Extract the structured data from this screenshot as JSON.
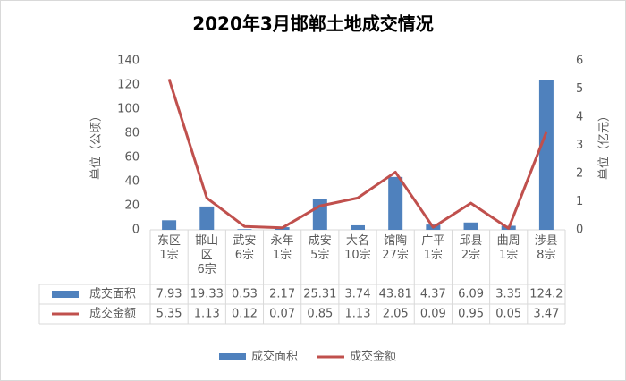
{
  "chart_data": {
    "type": "bar-line",
    "title": "2020年3月邯郸土地成交情况",
    "ylabel": "单位（公顷）",
    "y2label": "单位（亿元）",
    "categories": [
      "东区\n1宗",
      "邯山\n区\n6宗",
      "武安\n6宗",
      "永年\n1宗",
      "成安\n5宗",
      "大名\n10宗",
      "馆陶\n27宗",
      "广平\n1宗",
      "邱县\n2宗",
      "曲周\n1宗",
      "涉县\n8宗"
    ],
    "series": [
      {
        "name": "成交面积",
        "type": "bar",
        "color": "#4f81bd",
        "values": [
          7.93,
          19.33,
          0.53,
          2.17,
          25.31,
          3.74,
          43.81,
          4.37,
          6.09,
          3.35,
          124.2
        ]
      },
      {
        "name": "成交金额",
        "type": "line",
        "axis": "y2",
        "color": "#c0504d",
        "values": [
          5.35,
          1.13,
          0.12,
          0.07,
          0.85,
          1.13,
          2.05,
          0.09,
          0.95,
          0.05,
          3.47
        ]
      }
    ],
    "ylim": [
      0,
      140
    ],
    "yticks": [
      0,
      20,
      40,
      60,
      80,
      100,
      120,
      140
    ],
    "y2lim": [
      0,
      6
    ],
    "y2ticks": [
      0,
      1,
      2,
      3,
      4,
      5,
      6
    ],
    "legend": "bottom"
  }
}
